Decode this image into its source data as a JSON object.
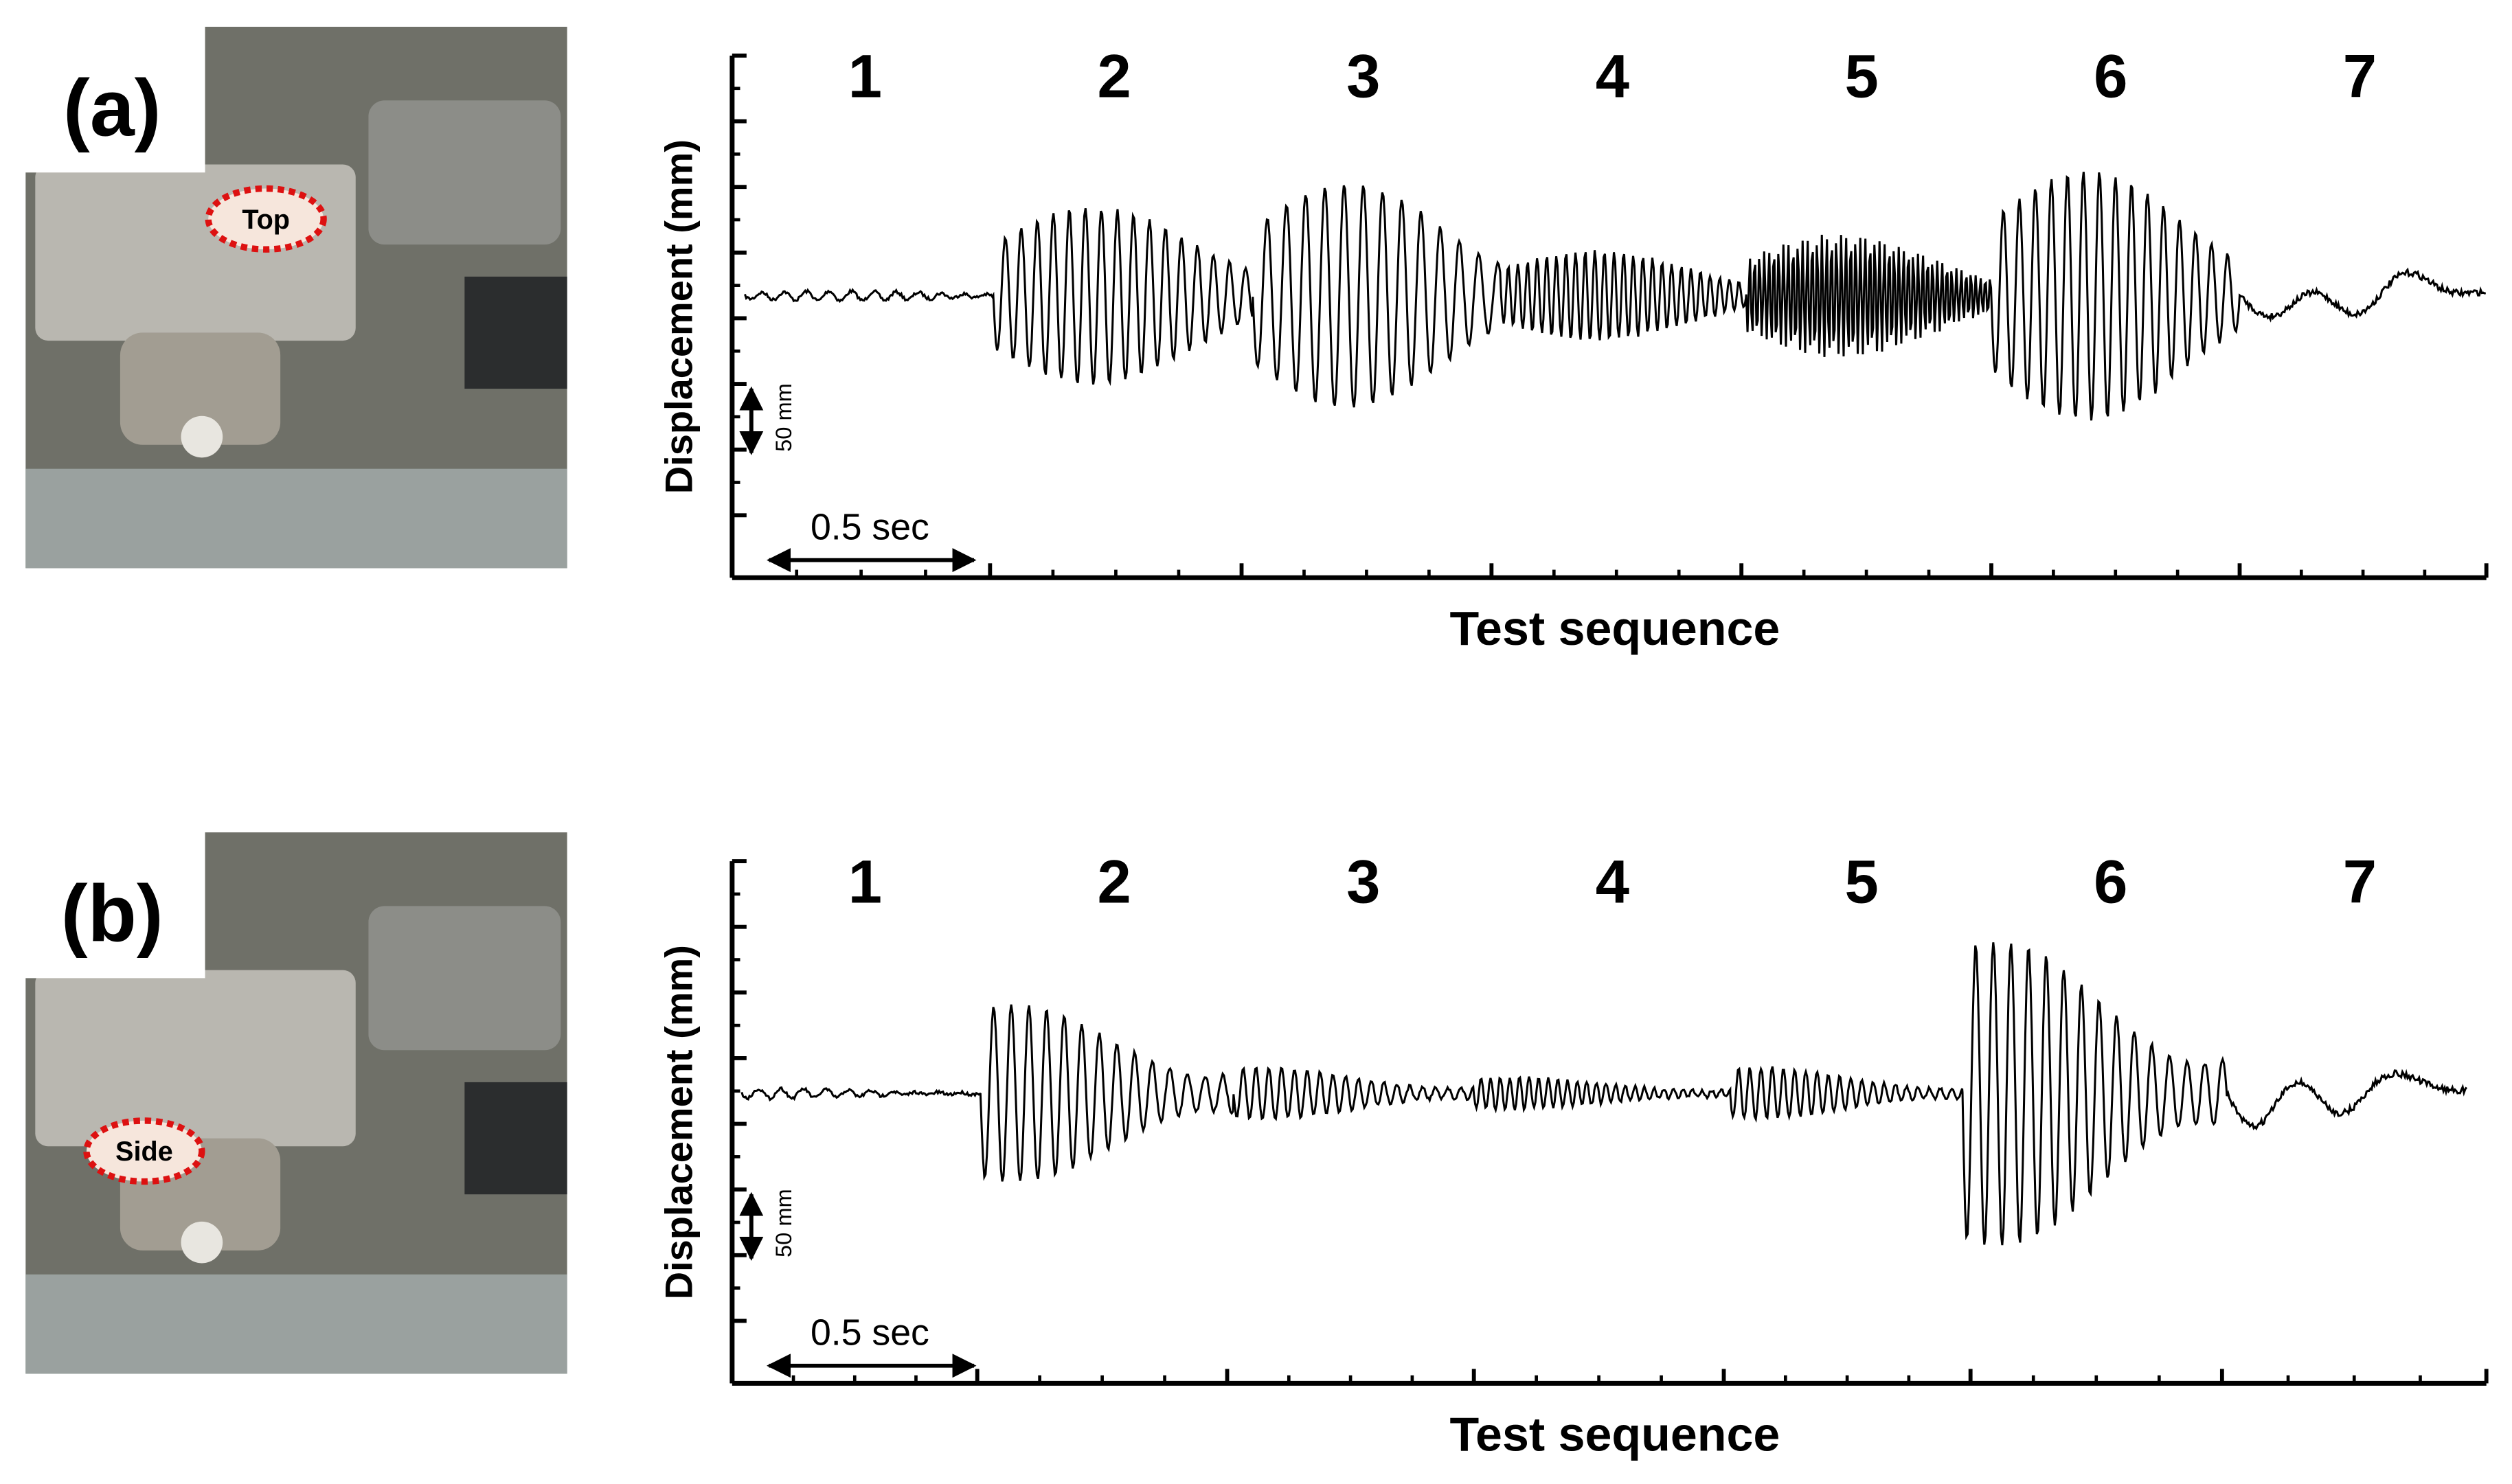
{
  "panels": [
    {
      "label": "(a)",
      "photo_tag": "Top",
      "y_axis_label": "Displacement (mm)",
      "x_axis_label": "Test sequence",
      "scale_bar_y": "50 mm",
      "scale_bar_x": "0.5 sec",
      "segments": [
        "1",
        "2",
        "3",
        "4",
        "5",
        "6",
        "7"
      ]
    },
    {
      "label": "(b)",
      "photo_tag": "Side",
      "y_axis_label": "Displacement (mm)",
      "x_axis_label": "Test sequence",
      "scale_bar_y": "50 mm",
      "scale_bar_x": "0.5 sec",
      "segments": [
        "1",
        "2",
        "3",
        "4",
        "5",
        "6",
        "7"
      ]
    }
  ]
}
